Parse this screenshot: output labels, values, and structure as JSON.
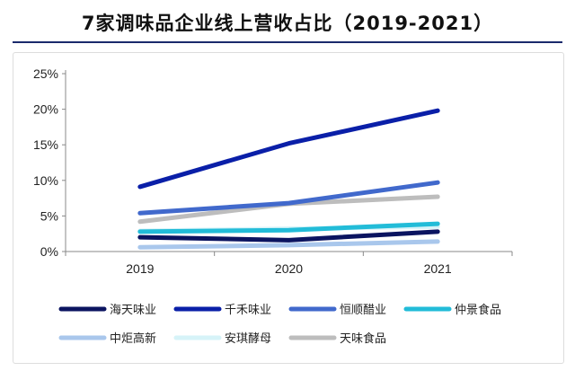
{
  "chart_data": {
    "type": "line",
    "title": "7家调味品企业线上营收占比（2019-2021）",
    "categories": [
      "2019",
      "2020",
      "2021"
    ],
    "ylim": [
      0,
      25
    ],
    "yticks": [
      "0%",
      "5%",
      "10%",
      "15%",
      "20%",
      "25%"
    ],
    "yunit": "%",
    "grid": false,
    "legend_position": "bottom",
    "series": [
      {
        "name": "海天味业",
        "color": "#0b1460",
        "values": [
          2.0,
          1.6,
          2.8
        ]
      },
      {
        "name": "千禾味业",
        "color": "#0a1fa8",
        "values": [
          9.1,
          15.2,
          19.8
        ]
      },
      {
        "name": "恒顺醋业",
        "color": "#4169cc",
        "values": [
          5.4,
          6.8,
          9.7
        ]
      },
      {
        "name": "仲景食品",
        "color": "#22bcd8",
        "values": [
          2.8,
          3.0,
          3.9
        ]
      },
      {
        "name": "中炬高新",
        "color": "#a9c7ec",
        "values": [
          0.6,
          0.9,
          1.4
        ]
      },
      {
        "name": "安琪酵母",
        "color": "#d6f3f8",
        "values": [
          2.9,
          3.2,
          3.5
        ]
      },
      {
        "name": "天味食品",
        "color": "#bdbdbd",
        "values": [
          4.2,
          6.7,
          7.7
        ]
      }
    ]
  }
}
